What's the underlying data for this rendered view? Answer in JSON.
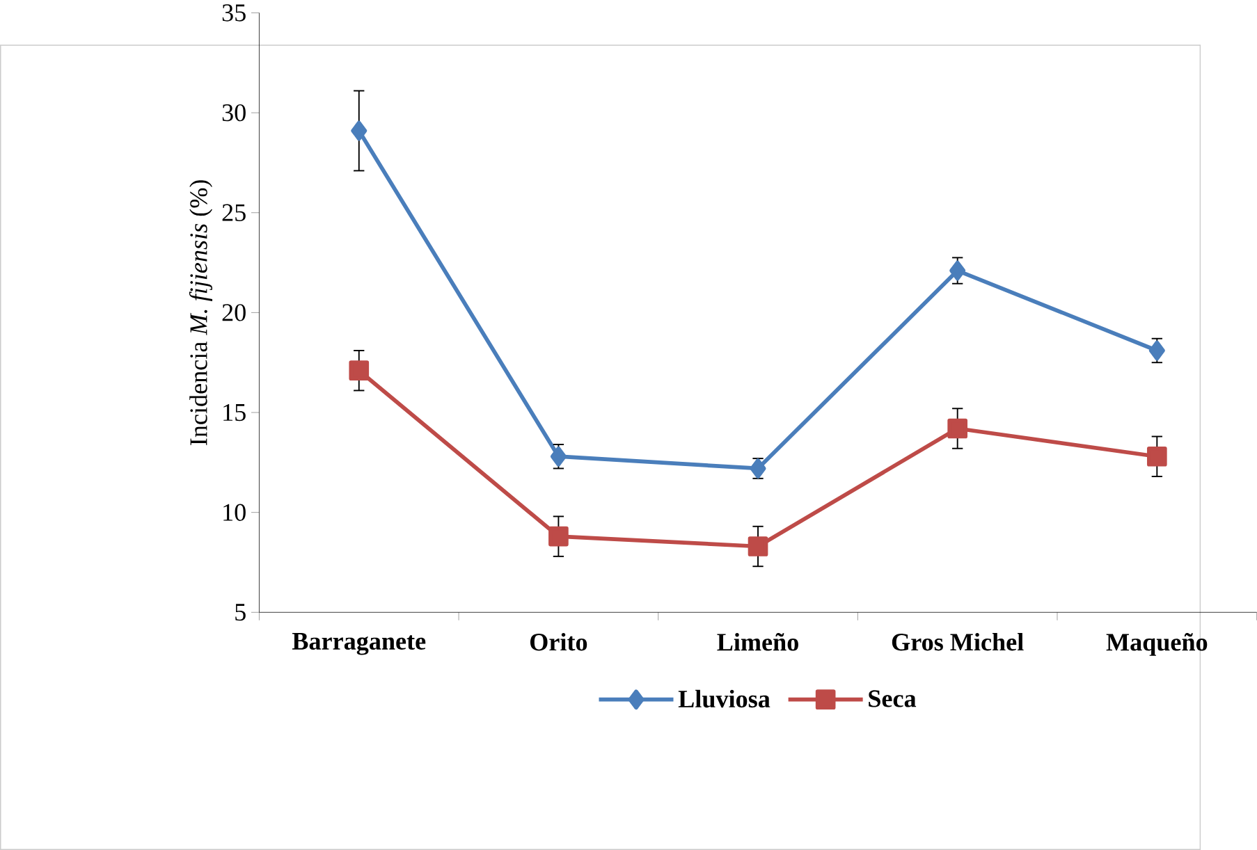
{
  "chart_data": {
    "type": "line",
    "ylabel": "Incidencia *M. fijiensis* (%)",
    "categories": [
      "Barraganete",
      "Orito",
      "Limeño",
      "Gros Michel",
      "Maqueño"
    ],
    "series": [
      {
        "name": "Lluviosa",
        "color": "#4a7ebb",
        "marker": "diamond",
        "values": [
          29.1,
          12.8,
          12.2,
          22.1,
          18.1
        ],
        "errors": [
          2,
          0.6,
          0.5,
          0.65,
          0.6
        ]
      },
      {
        "name": "Seca",
        "color": "#be4b48",
        "marker": "square",
        "values": [
          17.1,
          8.8,
          8.3,
          14.2,
          12.8
        ],
        "errors": [
          1,
          1,
          1,
          1,
          1
        ]
      }
    ],
    "ylim": [
      5,
      35
    ],
    "yticks": [
      5,
      10,
      15,
      20,
      25,
      30,
      35
    ],
    "grid": false,
    "legend": "bottom",
    "line_style": "solid"
  }
}
